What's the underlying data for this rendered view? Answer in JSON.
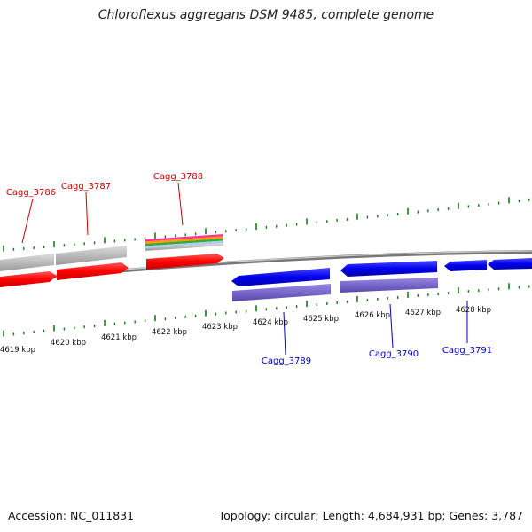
{
  "title": "Chloroflexus aggregans DSM 9485, complete genome",
  "footer": {
    "accession": "Accession: NC_011831",
    "summary": "Topology: circular; Length: 4,684,931 bp; Genes: 3,787"
  },
  "ticks": [
    "4619 kbp",
    "4620 kbp",
    "4621 kbp",
    "4622 kbp",
    "4623 kbp",
    "4624 kbp",
    "4625 kbp",
    "4626 kbp",
    "4627 kbp",
    "4628 kbp"
  ],
  "gene_labels": {
    "g3786": "Cagg_3786",
    "g3787": "Cagg_3787",
    "g3788": "Cagg_3788",
    "g3789": "Cagg_3789",
    "g3790": "Cagg_3790",
    "g3791": "Cagg_3791"
  },
  "colors": {
    "forward_cds": "#ff0000",
    "forward_label": "#cc0000",
    "reverse_cds": "#0000ee",
    "reverse_label": "#0000cc",
    "reverse_sub": "#7766cc",
    "gene_gray": "#bbbbbb",
    "backbone": "#888888",
    "minor_tick": "#1a7a1a"
  }
}
